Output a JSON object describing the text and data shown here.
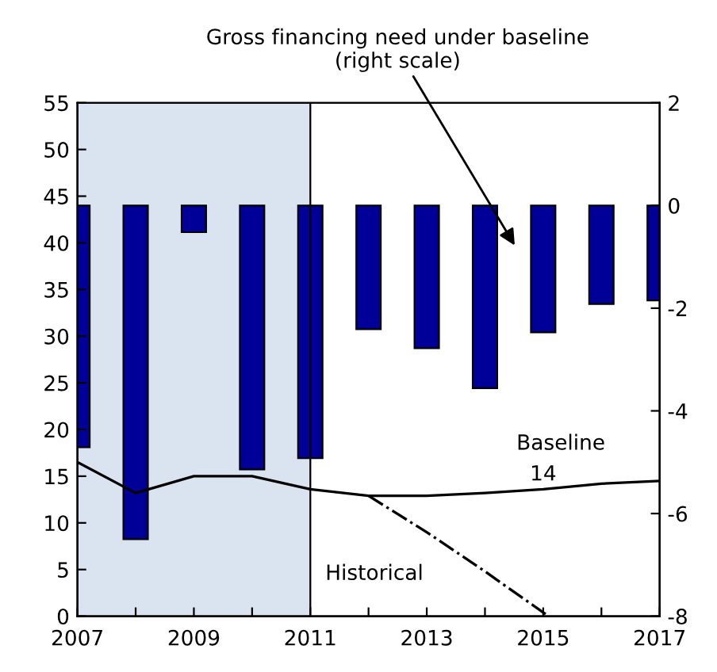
{
  "chart_data": {
    "type": "bar",
    "x": [
      2007,
      2008,
      2009,
      2010,
      2011,
      2012,
      2013,
      2014,
      2015,
      2016,
      2017
    ],
    "series": [
      {
        "axis": "y2",
        "color": "#000099",
        "values": [
          -4.71,
          -6.5,
          -0.52,
          -5.14,
          -4.92,
          -2.41,
          -2.78,
          -3.56,
          -2.47,
          -1.92,
          -1.85
        ]
      },
      {
        "type": "line",
        "name": "Baseline",
        "color": "#000000",
        "line_style": "solid",
        "values": [
          16.5,
          13.2,
          15.0,
          15.0,
          13.6,
          12.9,
          12.9,
          13.2,
          13.6,
          14.2,
          14.5
        ],
        "value_labels": [
          null,
          null,
          null,
          null,
          null,
          null,
          null,
          null,
          "14",
          null,
          null
        ]
      },
      {
        "type": "line",
        "name": "Historical",
        "color": "#000000",
        "line_style": "dashdot",
        "x": [
          2012,
          2013,
          2014,
          2015,
          2015.1
        ],
        "values": [
          12.9,
          9.0,
          4.8,
          0.4,
          0
        ]
      }
    ],
    "xlim": [
      2007,
      2017
    ],
    "xticks": [
      2007,
      {
        "value": 2008,
        "label": null
      },
      2009,
      {
        "value": 2010,
        "label": null
      },
      2011,
      {
        "value": 2012,
        "label": null
      },
      2013,
      {
        "value": 2014,
        "label": null
      },
      2015,
      {
        "value": 2016,
        "label": null
      },
      2017
    ],
    "ylim": [
      0,
      55
    ],
    "yticks": [
      0,
      5,
      10,
      15,
      20,
      25,
      30,
      35,
      40,
      45,
      50,
      55
    ],
    "y2lim": [
      -8,
      2
    ],
    "y2ticks": [
      -8,
      -6,
      -4,
      -2,
      0,
      2
    ],
    "bands": [
      {
        "axis": "x",
        "from": 2007,
        "to": 2011,
        "color": "#d9e4f0"
      }
    ],
    "ref_lines": [
      {
        "axis": "x",
        "value": 2011,
        "color": "#000000"
      }
    ],
    "annotations": [
      "Gross financing need under baseline\n(right scale)"
    ],
    "grid": false,
    "legend": false
  }
}
